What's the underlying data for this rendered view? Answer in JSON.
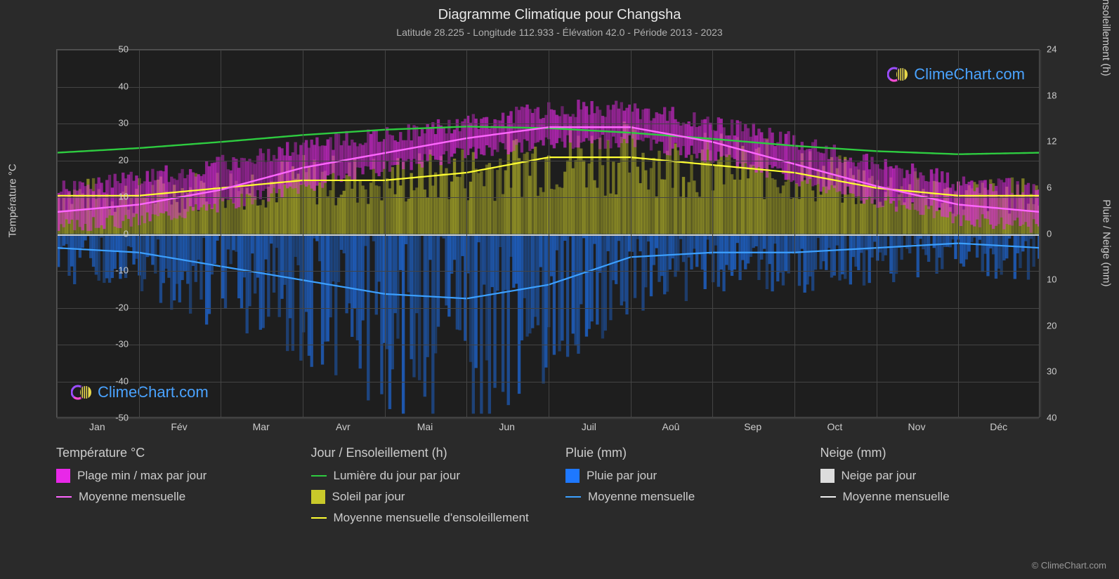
{
  "title": "Diagramme Climatique pour Changsha",
  "subtitle": "Latitude 28.225 - Longitude 112.933 - Élévation 42.0 - Période 2013 - 2023",
  "copyright": "© ClimeChart.com",
  "watermark_text": "ClimeChart.com",
  "chart": {
    "type": "climate-composite",
    "background_color": "#1e1e1e",
    "page_bg": "#2a2a2a",
    "grid_color": "#444444",
    "zero_line_color": "#cccccc",
    "text_color": "#cccccc",
    "left_axis": {
      "title": "Température °C",
      "min": -50,
      "max": 50,
      "tick_step": 10
    },
    "right_axis_top": {
      "title": "Jour / Ensoleillement (h)",
      "min": 0,
      "max": 24,
      "tick_step": 6
    },
    "right_axis_bottom": {
      "title": "Pluie / Neige (mm)",
      "min": 0,
      "max": 40,
      "tick_step": 10
    },
    "months": [
      "Jan",
      "Fév",
      "Mar",
      "Avr",
      "Mai",
      "Jun",
      "Juil",
      "Aoû",
      "Sep",
      "Oct",
      "Nov",
      "Déc"
    ],
    "series": {
      "temp_range": {
        "color": "#e828e8",
        "glow": "#ff4dff",
        "max": [
          12,
          15,
          19,
          24,
          27,
          30,
          34,
          34,
          30,
          25,
          19,
          14
        ],
        "min": [
          2,
          4,
          8,
          13,
          18,
          22,
          25,
          25,
          21,
          15,
          9,
          4
        ]
      },
      "temp_mean": {
        "color": "#ff66ff",
        "values": [
          6,
          8,
          12,
          18,
          22,
          26,
          29,
          29,
          25,
          19,
          13,
          8
        ]
      },
      "daylight": {
        "color": "#2ecc40",
        "values": [
          10.6,
          11.2,
          12.0,
          12.9,
          13.6,
          14.0,
          13.8,
          13.2,
          12.4,
          11.5,
          10.8,
          10.4
        ]
      },
      "sunshine_band": {
        "color": "#c9c92a",
        "values": [
          5,
          5,
          6,
          7,
          7,
          8,
          10,
          10,
          9,
          8,
          6,
          5
        ]
      },
      "sunshine_mean": {
        "color": "#ffff33",
        "values": [
          5,
          5,
          6,
          7,
          7,
          8,
          10,
          10,
          9,
          8,
          6,
          5
        ]
      },
      "rain_band": {
        "color": "#1e78ff",
        "values": [
          5,
          6,
          10,
          13,
          18,
          20,
          15,
          8,
          6,
          6,
          5,
          4
        ]
      },
      "rain_mean": {
        "color": "#3ca0ff",
        "values": [
          3,
          4,
          7,
          10,
          13,
          14,
          11,
          5,
          4,
          4,
          3,
          2
        ]
      },
      "snow_band": {
        "color": "#dddddd",
        "values": [
          0.3,
          0.2,
          0,
          0,
          0,
          0,
          0,
          0,
          0,
          0,
          0,
          0.1
        ]
      },
      "snow_mean": {
        "color": "#eeeeee",
        "values": [
          0.2,
          0.1,
          0,
          0,
          0,
          0,
          0,
          0,
          0,
          0,
          0,
          0.05
        ]
      }
    }
  },
  "legend": {
    "sections": [
      {
        "title": "Température °C",
        "items": [
          {
            "type": "swatch",
            "color": "#e828e8",
            "label": "Plage min / max par jour"
          },
          {
            "type": "line",
            "color": "#ff66ff",
            "label": "Moyenne mensuelle"
          }
        ]
      },
      {
        "title": "Jour / Ensoleillement (h)",
        "items": [
          {
            "type": "line",
            "color": "#2ecc40",
            "label": "Lumière du jour par jour"
          },
          {
            "type": "swatch",
            "color": "#c9c92a",
            "label": "Soleil par jour"
          },
          {
            "type": "line",
            "color": "#ffff33",
            "label": "Moyenne mensuelle d'ensoleillement"
          }
        ]
      },
      {
        "title": "Pluie (mm)",
        "items": [
          {
            "type": "swatch",
            "color": "#1e78ff",
            "label": "Pluie par jour"
          },
          {
            "type": "line",
            "color": "#3ca0ff",
            "label": "Moyenne mensuelle"
          }
        ]
      },
      {
        "title": "Neige (mm)",
        "items": [
          {
            "type": "swatch",
            "color": "#dddddd",
            "label": "Neige par jour"
          },
          {
            "type": "line",
            "color": "#eeeeee",
            "label": "Moyenne mensuelle"
          }
        ]
      }
    ]
  }
}
